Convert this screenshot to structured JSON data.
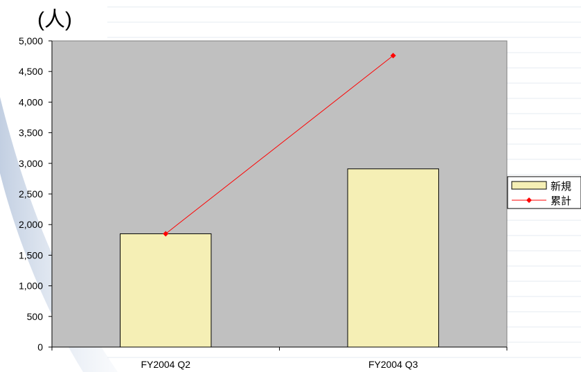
{
  "chart_data": {
    "type": "bar",
    "unit_label": "(人)",
    "categories": [
      "FY2004 Q2",
      "FY2004 Q3"
    ],
    "ylim": [
      0,
      5000
    ],
    "ytick_step": 500,
    "ytick_labels": [
      "0",
      "500",
      "1,000",
      "1,500",
      "2,000",
      "2,500",
      "3,000",
      "3,500",
      "4,000",
      "4,500",
      "5,000"
    ],
    "grid": false,
    "plot_background": "#c0c0c0",
    "legend_position": "right",
    "series": [
      {
        "name": "新規",
        "type": "bar",
        "values": [
          1850,
          2910
        ],
        "color": "#f5efb5"
      },
      {
        "name": "累計",
        "type": "line",
        "values": [
          1850,
          4760
        ],
        "color": "#ff0000",
        "marker": "diamond"
      }
    ]
  }
}
